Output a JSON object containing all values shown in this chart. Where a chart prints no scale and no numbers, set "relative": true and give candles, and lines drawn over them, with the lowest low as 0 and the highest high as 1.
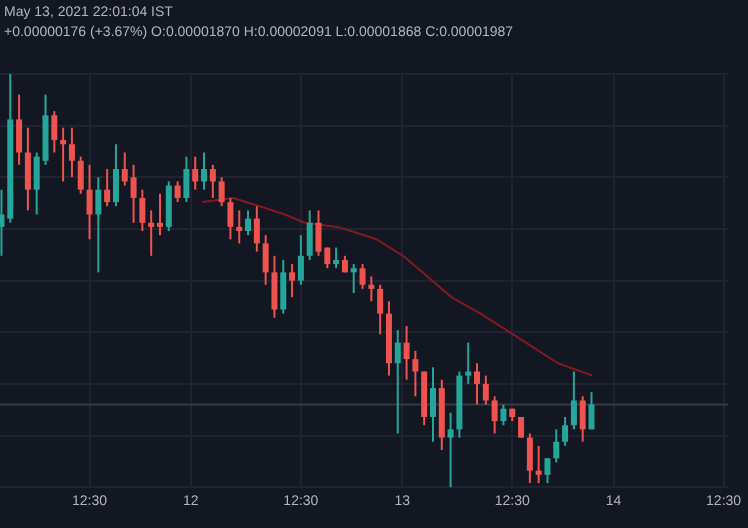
{
  "chart_data": {
    "type": "candlestick",
    "relative": true,
    "annotations": [
      "May 13, 2021 22:01:04 IST",
      "+0.00000176 (+3.67%) O:0.00001870 H:0.00002091 L:0.00001868 C:0.00001987"
    ],
    "x": [
      "2021-05-11T02:30",
      "2021-05-11T03:30",
      "2021-05-11T04:30",
      "2021-05-11T05:30",
      "2021-05-11T06:30",
      "2021-05-11T07:30",
      "2021-05-11T08:30",
      "2021-05-11T09:30",
      "2021-05-11T10:30",
      "2021-05-11T11:30",
      "2021-05-11T12:30",
      "2021-05-11T13:30",
      "2021-05-11T14:30",
      "2021-05-11T15:30",
      "2021-05-11T16:30",
      "2021-05-11T17:30",
      "2021-05-11T18:30",
      "2021-05-11T19:30",
      "2021-05-11T20:30",
      "2021-05-11T21:30",
      "2021-05-11T22:30",
      "2021-05-11T23:30",
      "2021-05-12T00:30",
      "2021-05-12T01:30",
      "2021-05-12T02:30",
      "2021-05-12T03:30",
      "2021-05-12T04:30",
      "2021-05-12T05:30",
      "2021-05-12T06:30",
      "2021-05-12T07:30",
      "2021-05-12T08:30",
      "2021-05-12T09:30",
      "2021-05-12T10:30",
      "2021-05-12T11:30",
      "2021-05-12T12:30",
      "2021-05-12T13:30",
      "2021-05-12T14:30",
      "2021-05-12T15:30",
      "2021-05-12T16:30",
      "2021-05-12T17:30",
      "2021-05-12T18:30",
      "2021-05-12T19:30",
      "2021-05-12T20:30",
      "2021-05-12T21:30",
      "2021-05-12T22:30",
      "2021-05-12T23:30",
      "2021-05-13T00:30",
      "2021-05-13T01:30",
      "2021-05-13T02:30",
      "2021-05-13T03:30",
      "2021-05-13T04:30",
      "2021-05-13T05:30",
      "2021-05-13T06:30",
      "2021-05-13T07:30",
      "2021-05-13T08:30",
      "2021-05-13T09:30",
      "2021-05-13T10:30",
      "2021-05-13T11:30",
      "2021-05-13T12:30",
      "2021-05-13T13:30",
      "2021-05-13T14:30",
      "2021-05-13T15:30",
      "2021-05-13T16:30",
      "2021-05-13T17:30",
      "2021-05-13T18:30",
      "2021-05-13T19:30",
      "2021-05-13T20:30",
      "2021-05-13T21:30"
    ],
    "ohlc": [
      [
        0.63,
        0.72,
        0.56,
        0.66
      ],
      [
        0.65,
        1,
        0.64,
        0.89
      ],
      [
        0.89,
        0.95,
        0.78,
        0.81
      ],
      [
        0.81,
        0.87,
        0.67,
        0.72
      ],
      [
        0.72,
        0.81,
        0.66,
        0.8
      ],
      [
        0.79,
        0.95,
        0.78,
        0.9
      ],
      [
        0.9,
        0.91,
        0.81,
        0.84
      ],
      [
        0.84,
        0.87,
        0.74,
        0.83
      ],
      [
        0.83,
        0.87,
        0.75,
        0.79
      ],
      [
        0.79,
        0.8,
        0.71,
        0.72
      ],
      [
        0.72,
        0.78,
        0.6,
        0.66
      ],
      [
        0.66,
        0.75,
        0.52,
        0.72
      ],
      [
        0.72,
        0.77,
        0.68,
        0.69
      ],
      [
        0.69,
        0.83,
        0.68,
        0.77
      ],
      [
        0.77,
        0.81,
        0.73,
        0.74
      ],
      [
        0.75,
        0.78,
        0.64,
        0.7
      ],
      [
        0.7,
        0.72,
        0.62,
        0.64
      ],
      [
        0.64,
        0.67,
        0.56,
        0.63
      ],
      [
        0.64,
        0.71,
        0.61,
        0.63
      ],
      [
        0.63,
        0.74,
        0.62,
        0.73
      ],
      [
        0.73,
        0.74,
        0.69,
        0.7
      ],
      [
        0.7,
        0.8,
        0.69,
        0.77
      ],
      [
        0.77,
        0.8,
        0.72,
        0.74
      ],
      [
        0.74,
        0.81,
        0.72,
        0.77
      ],
      [
        0.77,
        0.78,
        0.7,
        0.74
      ],
      [
        0.74,
        0.75,
        0.68,
        0.69
      ],
      [
        0.69,
        0.7,
        0.6,
        0.63
      ],
      [
        0.63,
        0.67,
        0.59,
        0.62
      ],
      [
        0.62,
        0.67,
        0.61,
        0.65
      ],
      [
        0.65,
        0.68,
        0.57,
        0.59
      ],
      [
        0.59,
        0.61,
        0.49,
        0.52
      ],
      [
        0.52,
        0.56,
        0.41,
        0.43
      ],
      [
        0.43,
        0.55,
        0.42,
        0.52
      ],
      [
        0.52,
        0.54,
        0.46,
        0.5
      ],
      [
        0.5,
        0.61,
        0.49,
        0.56
      ],
      [
        0.56,
        0.67,
        0.55,
        0.64
      ],
      [
        0.64,
        0.67,
        0.56,
        0.57
      ],
      [
        0.58,
        0.58,
        0.53,
        0.54
      ],
      [
        0.54,
        0.58,
        0.53,
        0.55
      ],
      [
        0.55,
        0.56,
        0.52,
        0.52
      ],
      [
        0.52,
        0.54,
        0.47,
        0.53
      ],
      [
        0.53,
        0.54,
        0.48,
        0.49
      ],
      [
        0.49,
        0.51,
        0.45,
        0.48
      ],
      [
        0.48,
        0.49,
        0.37,
        0.42
      ],
      [
        0.42,
        0.45,
        0.27,
        0.3
      ],
      [
        0.3,
        0.38,
        0.13,
        0.35
      ],
      [
        0.35,
        0.39,
        0.26,
        0.31
      ],
      [
        0.31,
        0.33,
        0.22,
        0.28
      ],
      [
        0.28,
        0.28,
        0.15,
        0.17
      ],
      [
        0.17,
        0.29,
        0.11,
        0.24
      ],
      [
        0.24,
        0.26,
        0.09,
        0.12
      ],
      [
        0.12,
        0.18,
        0,
        0.14
      ],
      [
        0.14,
        0.28,
        0.12,
        0.27
      ],
      [
        0.27,
        0.35,
        0.25,
        0.28
      ],
      [
        0.28,
        0.3,
        0.2,
        0.25
      ],
      [
        0.25,
        0.27,
        0.2,
        0.21
      ],
      [
        0.21,
        0.22,
        0.13,
        0.16
      ],
      [
        0.16,
        0.2,
        0.15,
        0.19
      ],
      [
        0.19,
        0.19,
        0.16,
        0.17
      ],
      [
        0.17,
        0.17,
        0.12,
        0.12
      ],
      [
        0.12,
        0.13,
        0.01,
        0.04
      ],
      [
        0.04,
        0.1,
        0.01,
        0.03
      ],
      [
        0.03,
        0.07,
        0.01,
        0.07
      ],
      [
        0.07,
        0.14,
        0.06,
        0.11
      ],
      [
        0.11,
        0.17,
        0.1,
        0.15
      ],
      [
        0.15,
        0.28,
        0.14,
        0.21
      ],
      [
        0.21,
        0.22,
        0.11,
        0.14
      ],
      [
        0.14,
        0.23,
        0.14,
        0.2
      ]
    ],
    "colors": [
      "#26a69a",
      "#26a69a",
      "#ef5350",
      "#ef5350",
      "#26a69a",
      "#26a69a",
      "#ef5350",
      "#ef5350",
      "#ef5350",
      "#ef5350",
      "#ef5350",
      "#26a69a",
      "#ef5350",
      "#26a69a",
      "#ef5350",
      "#ef5350",
      "#ef5350",
      "#ef5350",
      "#ef5350",
      "#26a69a",
      "#ef5350",
      "#26a69a",
      "#ef5350",
      "#26a69a",
      "#ef5350",
      "#ef5350",
      "#ef5350",
      "#ef5350",
      "#26a69a",
      "#ef5350",
      "#ef5350",
      "#ef5350",
      "#26a69a",
      "#ef5350",
      "#26a69a",
      "#26a69a",
      "#ef5350",
      "#ef5350",
      "#26a69a",
      "#ef5350",
      "#26a69a",
      "#ef5350",
      "#ef5350",
      "#ef5350",
      "#ef5350",
      "#26a69a",
      "#ef5350",
      "#ef5350",
      "#ef5350",
      "#26a69a",
      "#ef5350",
      "#26a69a",
      "#26a69a",
      "#26a69a",
      "#ef5350",
      "#ef5350",
      "#ef5350",
      "#26a69a",
      "#ef5350",
      "#ef5350",
      "#ef5350",
      "#ef5350",
      "#26a69a",
      "#26a69a",
      "#26a69a",
      "#26a69a",
      "#ef5350",
      "#26a69a"
    ],
    "xlim": [
      "2021-05-11T02:20",
      "2021-05-14T13:00"
    ],
    "xticks": [
      {
        "value": "2021-05-11T12:30",
        "label": "12:30"
      },
      {
        "value": "2021-05-12T00:00",
        "label": "12"
      },
      {
        "value": "2021-05-12T12:30",
        "label": "12:30"
      },
      {
        "value": "2021-05-13T00:00",
        "label": "13"
      },
      {
        "value": "2021-05-13T12:30",
        "label": "12:30"
      },
      {
        "value": "2021-05-14T00:00",
        "label": "14"
      },
      {
        "value": "2021-05-14T12:30",
        "label": "12:30"
      }
    ],
    "grid": true,
    "ref_lines": [
      {
        "axis": "y",
        "value": 0.2,
        "color": "#363a45"
      }
    ],
    "series": [
      {
        "type": "line",
        "color": "#801922",
        "x": [
          "2021-05-12T01:18",
          "2021-05-12T04:48",
          "2021-05-12T07:48",
          "2021-05-12T10:42",
          "2021-05-12T12:54",
          "2021-05-12T16:36",
          "2021-05-12T18:12",
          "2021-05-12T21:06",
          "2021-05-13T00:06",
          "2021-05-13T02:18",
          "2021-05-13T05:36",
          "2021-05-13T08:54",
          "2021-05-13T12:36",
          "2021-05-13T15:30",
          "2021-05-13T17:42",
          "2021-05-13T21:36"
        ],
        "values": [
          0.69,
          0.7,
          0.68,
          0.66,
          0.64,
          0.63,
          0.62,
          0.6,
          0.56,
          0.52,
          0.46,
          0.42,
          0.37,
          0.33,
          0.3,
          0.27
        ]
      }
    ]
  }
}
